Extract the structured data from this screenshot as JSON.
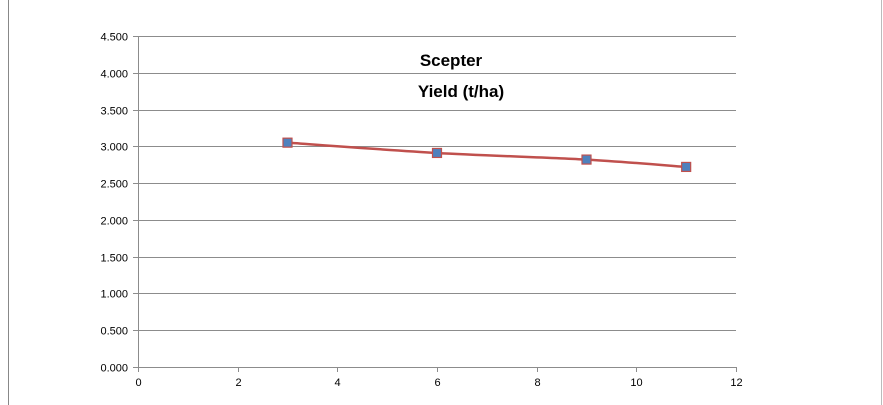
{
  "chart_data": {
    "type": "line",
    "title_lines": [
      "Scepter",
      "Yield (t/ha)"
    ],
    "xlabel": "",
    "ylabel": "",
    "xlim": [
      0,
      12
    ],
    "ylim": [
      0,
      4.5
    ],
    "x_ticks": [
      "0",
      "2",
      "4",
      "6",
      "8",
      "10",
      "12"
    ],
    "y_ticks": [
      "0.000",
      "0.500",
      "1.000",
      "1.500",
      "2.000",
      "2.500",
      "3.000",
      "3.500",
      "4.000",
      "4.500"
    ],
    "grid": "horizontal",
    "legend": "none",
    "series": [
      {
        "x": [
          3,
          6,
          9,
          11
        ],
        "y": [
          3.05,
          2.91,
          2.82,
          2.72
        ],
        "line_color": "#c0504d",
        "marker_color": "#4f81bd",
        "marker": "square"
      }
    ]
  }
}
